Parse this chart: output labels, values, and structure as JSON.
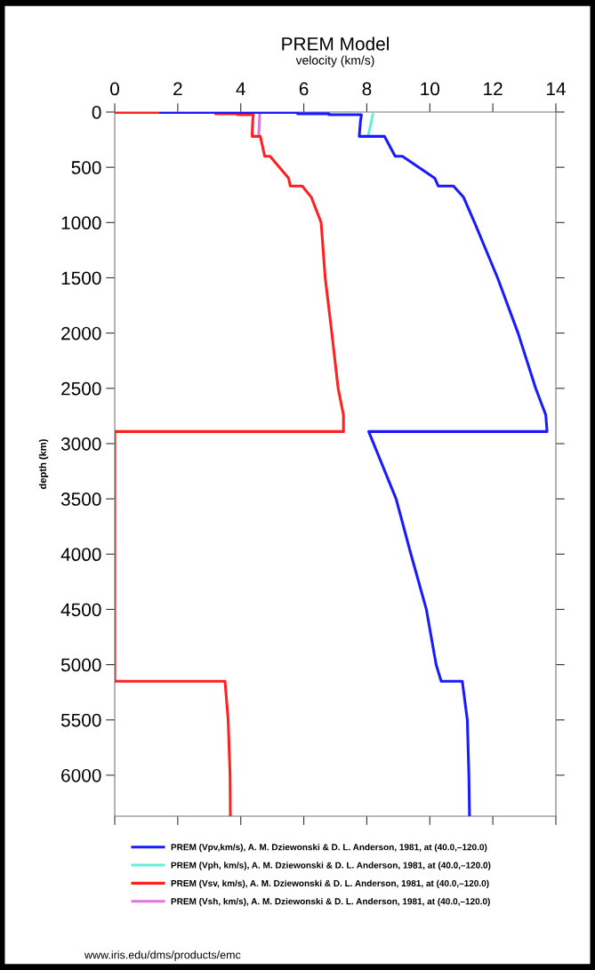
{
  "chart_data": {
    "type": "line",
    "orientation": "horizontal",
    "title": "PREM Model",
    "xlabel": "velocity (km/s)",
    "ylabel": "depth (km)",
    "xlim": [
      0,
      14
    ],
    "xticks": [
      0,
      2,
      4,
      6,
      8,
      10,
      12,
      14
    ],
    "ylim": [
      6371,
      0
    ],
    "yticks": [
      0,
      500,
      1000,
      1500,
      2000,
      2500,
      3000,
      3500,
      4000,
      4500,
      5000,
      5500,
      6000
    ],
    "grid": false,
    "legend": "bottom",
    "marker": "none",
    "line_style": "solid",
    "series": [
      {
        "name": "PREM (Vpv,km/s), A. M. Dziewonski & D. L. Anderson, 1981, at (40.0,–120.0)",
        "color": "#1a1aff",
        "x": [
          0,
          3,
          3,
          15,
          15,
          24.4,
          24.4,
          80,
          220,
          220,
          400,
          400,
          600,
          670,
          670,
          771,
          1000,
          1500,
          2000,
          2500,
          2741,
          2891,
          2891,
          3500,
          4000,
          4500,
          5000,
          5150,
          5150,
          5500,
          6000,
          6371
        ],
        "values": [
          1.45,
          1.45,
          5.8,
          5.8,
          6.8,
          6.8,
          7.83,
          7.8,
          7.76,
          8.56,
          8.9,
          9.13,
          10.16,
          10.27,
          10.75,
          11.07,
          11.42,
          12.15,
          12.8,
          13.36,
          13.68,
          13.72,
          8.06,
          8.93,
          9.4,
          9.89,
          10.2,
          10.36,
          11.03,
          11.19,
          11.24,
          11.26
        ]
      },
      {
        "name": "PREM (Vph, km/s), A. M. Dziewonski & D. L. Anderson, 1981, at (40.0,–120.0)",
        "color": "#66eedd",
        "x": [
          24.4,
          220
        ],
        "values": [
          8.19,
          8.04
        ]
      },
      {
        "name": "PREM (Vsv, km/s), A. M. Dziewonski & D. L. Anderson, 1981, at (40.0,–120.0)",
        "color": "#ff2020",
        "x": [
          0,
          3,
          3,
          15,
          15,
          24.4,
          24.4,
          80,
          220,
          220,
          400,
          400,
          600,
          670,
          670,
          771,
          1000,
          1500,
          2000,
          2500,
          2741,
          2891,
          2891,
          3500,
          4000,
          4500,
          5000,
          5150,
          5150,
          5500,
          6000,
          6371
        ],
        "values": [
          0,
          0,
          3.2,
          3.2,
          3.9,
          3.9,
          4.4,
          4.38,
          4.36,
          4.62,
          4.76,
          4.93,
          5.52,
          5.57,
          5.95,
          6.24,
          6.55,
          6.68,
          6.89,
          7.09,
          7.26,
          7.26,
          0,
          0,
          0,
          0,
          0,
          0,
          3.5,
          3.6,
          3.66,
          3.67
        ]
      },
      {
        "name": "PREM (Vsh, km/s), A. M. Dziewonski & D. L. Anderson, 1981, at (40.0,–120.0)",
        "color": "#dd77dd",
        "x": [
          24.4,
          220
        ],
        "values": [
          4.6,
          4.57
        ]
      }
    ],
    "annotations": [
      "www.iris.edu/dms/products/emc"
    ]
  }
}
